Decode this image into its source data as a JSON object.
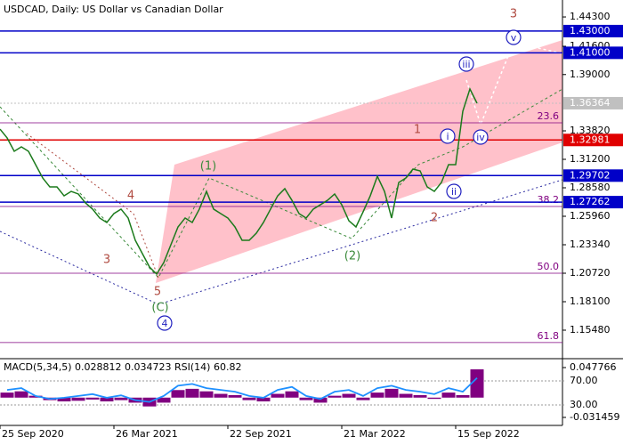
{
  "chart_data": [
    {
      "type": "line",
      "title": "USDCAD, Daily:  US Dollar vs Canadian Dollar",
      "color": "#1b7a1b",
      "values": [
        1.3398,
        1.3317,
        1.3194,
        1.3235,
        1.3194,
        1.3071,
        1.2948,
        1.2866,
        1.2866,
        1.2784,
        1.2825,
        1.2801,
        1.2719,
        1.2662,
        1.258,
        1.2539,
        1.2621,
        1.2662,
        1.258,
        1.2375,
        1.2252,
        1.2129,
        1.2064,
        1.217,
        1.2334,
        1.2498,
        1.258,
        1.2539,
        1.2662,
        1.2825,
        1.2662,
        1.2621,
        1.258,
        1.2498,
        1.2375,
        1.2375,
        1.244,
        1.2539,
        1.2662,
        1.2784,
        1.285,
        1.2743,
        1.2621,
        1.258,
        1.2662,
        1.2702,
        1.2743,
        1.2801,
        1.2702,
        1.2555,
        1.2498,
        1.2637,
        1.2784,
        1.2964,
        1.2825,
        1.258,
        1.2907,
        1.2948,
        1.303,
        1.3014,
        1.2866,
        1.2825,
        1.2907,
        1.3071,
        1.3071,
        1.3562,
        1.3767,
        1.3636
      ],
      "xlim": [
        0,
        79
      ],
      "xticks": [
        {
          "value": 0,
          "label": "25 Sep 2020"
        },
        {
          "value": 16,
          "label": "26 Mar 2021"
        },
        {
          "value": 32,
          "label": "22 Sep 2021"
        },
        {
          "value": 48,
          "label": "21 Mar 2022"
        },
        {
          "value": 64,
          "label": "15 Sep 2022"
        }
      ],
      "ylim": [
        1.1294,
        1.4586
      ],
      "yticks": [
        {
          "value": 1.443,
          "label": "1.44300"
        },
        {
          "value": 1.416,
          "label": "1.41600"
        },
        {
          "value": 1.39,
          "label": "1.39000"
        },
        {
          "value": 1.3382,
          "label": "1.33820"
        },
        {
          "value": 1.312,
          "label": "1.31200"
        },
        {
          "value": 1.2858,
          "label": "1.28580"
        },
        {
          "value": 1.2596,
          "label": "1.25960"
        },
        {
          "value": 1.2334,
          "label": "1.23340"
        },
        {
          "value": 1.2072,
          "label": "1.20720"
        },
        {
          "value": 1.181,
          "label": "1.18100"
        },
        {
          "value": 1.1548,
          "label": "1.15480"
        }
      ],
      "levels": [
        {
          "value": 1.43,
          "label": "1.43000",
          "color": "#0000c8"
        },
        {
          "value": 1.41,
          "label": "1.41000",
          "color": "#0000c8"
        },
        {
          "value": 1.36364,
          "label": "1.36364",
          "color": "#c0c0c0"
        },
        {
          "value": 1.32981,
          "label": "1.32981",
          "color": "#e00000"
        },
        {
          "value": 1.29702,
          "label": "1.29702",
          "color": "#0000c8"
        },
        {
          "value": 1.27262,
          "label": "1.27262",
          "color": "#0000c8"
        }
      ],
      "fib_levels": [
        {
          "value": 1.3456,
          "label": "23.6"
        },
        {
          "value": 1.2686,
          "label": "38.2"
        },
        {
          "value": 1.2072,
          "label": "50.0"
        },
        {
          "value": 1.1434,
          "label": "61.8"
        }
      ],
      "fib_color": "#800080",
      "annotations": [
        {
          "text": "3",
          "color": "#b04a40",
          "circled": false
        },
        {
          "text": "v",
          "color": "#1f1fbf",
          "circled": true
        },
        {
          "text": "iii",
          "color": "#1f1fbf",
          "circled": true
        },
        {
          "text": "1",
          "color": "#b04a40",
          "circled": false
        },
        {
          "text": "i",
          "color": "#1f1fbf",
          "circled": true
        },
        {
          "text": "iv",
          "color": "#1f1fbf",
          "circled": true
        },
        {
          "text": "ii",
          "color": "#1f1fbf",
          "circled": true
        },
        {
          "text": "2",
          "color": "#b04a40",
          "circled": false
        },
        {
          "text": "(1)",
          "color": "#3a8a3a",
          "circled": false
        },
        {
          "text": "4",
          "color": "#b04a40",
          "circled": false
        },
        {
          "text": "3",
          "color": "#b04a40",
          "circled": false
        },
        {
          "text": "(2)",
          "color": "#3a8a3a",
          "circled": false
        },
        {
          "text": "5",
          "color": "#b04a40",
          "circled": false
        },
        {
          "text": "(C)",
          "color": "#3a8a3a",
          "circled": false
        },
        {
          "text": "4",
          "color": "#1f1fbf",
          "circled": true
        }
      ]
    },
    {
      "type": "bar",
      "title": "MACD(5,34,5) 0.028812 0.034723 RSI(14) 60.82",
      "series": [
        {
          "color": "#800080",
          "values": [
            0.008,
            0.01,
            0.003,
            -0.004,
            -0.006,
            -0.005,
            -0.003,
            -0.006,
            -0.004,
            -0.008,
            -0.014,
            -0.008,
            0.012,
            0.014,
            0.01,
            0.006,
            0.004,
            -0.004,
            -0.006,
            0.006,
            0.01,
            -0.004,
            -0.008,
            0.003,
            0.006,
            -0.004,
            0.008,
            0.014,
            0.006,
            0.004,
            -0.002,
            0.008,
            0.004,
            0.045
          ]
        },
        {
          "color": "#1e90ff",
          "axis": "y2",
          "values": [
            55,
            58,
            45,
            40,
            42,
            45,
            48,
            42,
            46,
            38,
            35,
            45,
            62,
            65,
            58,
            55,
            52,
            45,
            42,
            55,
            60,
            45,
            40,
            52,
            55,
            45,
            58,
            62,
            55,
            52,
            48,
            58,
            52,
            75
          ]
        }
      ],
      "ylim": [
        -0.0442,
        0.0591
      ],
      "yticks": [
        0.047766,
        -0.031459
      ],
      "y2lim": [
        -4.1,
        104.1
      ],
      "y2ticks": [
        {
          "value": 70,
          "label": "70.00"
        },
        {
          "value": 30,
          "label": "30.00"
        }
      ]
    }
  ]
}
